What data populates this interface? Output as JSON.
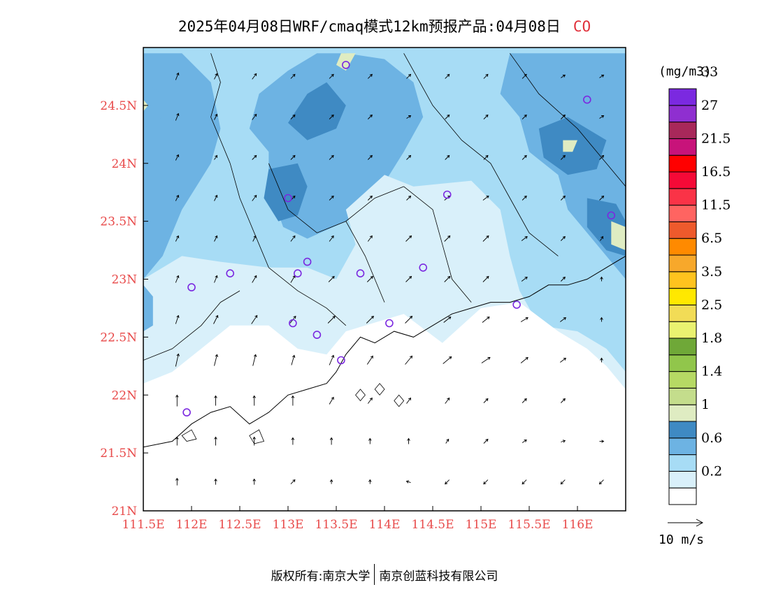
{
  "title": "2025年04月08日WRF/cmaq模式12km预报产品:04月08日",
  "species": "CO",
  "footer": {
    "left": "版权所有:南京大学",
    "right": "南京创蓝科技有限公司"
  },
  "legend": {
    "unit": "(mg/m3)",
    "colors": [
      "#ffffff",
      "#d9f0fa",
      "#a7dcf5",
      "#6db3e3",
      "#3f8ac3",
      "#dfecc2",
      "#c4dd8c",
      "#b6d964",
      "#91c64b",
      "#6fa838",
      "#eaf270",
      "#f2dc56",
      "#ffe800",
      "#ffc31e",
      "#f7a82b",
      "#ff8a00",
      "#ee5a2c",
      "#ff6461",
      "#fa3347",
      "#f50a37",
      "#ff0000",
      "#c8137a",
      "#a8285a",
      "#8f2fd0",
      "#7b29e0"
    ],
    "labels": [
      {
        "text": "0.2",
        "boundary": 2
      },
      {
        "text": "0.6",
        "boundary": 4
      },
      {
        "text": "1",
        "boundary": 6
      },
      {
        "text": "1.4",
        "boundary": 8
      },
      {
        "text": "1.8",
        "boundary": 10
      },
      {
        "text": "2.5",
        "boundary": 12
      },
      {
        "text": "3.5",
        "boundary": 14
      },
      {
        "text": "6.5",
        "boundary": 16
      },
      {
        "text": "11.5",
        "boundary": 18
      },
      {
        "text": "16.5",
        "boundary": 20
      },
      {
        "text": "21.5",
        "boundary": 22
      },
      {
        "text": "27",
        "boundary": 24
      },
      {
        "text": "33",
        "boundary": 26
      }
    ]
  },
  "wind_scale": {
    "label": "10 m/s"
  },
  "axes": {
    "lon_ticks": [
      "111.5E",
      "112E",
      "112.5E",
      "113E",
      "113.5E",
      "114E",
      "114.5E",
      "115E",
      "115.5E",
      "116E"
    ],
    "lat_ticks": [
      "21N",
      "21.5N",
      "22N",
      "22.5N",
      "23N",
      "23.5N",
      "24N",
      "24.5N"
    ],
    "lon_range": [
      111.5,
      116.5
    ],
    "lat_range": [
      21.0,
      25.0
    ],
    "tick_color": "#e84a4a"
  },
  "stations": [
    {
      "lon": 113.6,
      "lat": 24.85
    },
    {
      "lon": 116.1,
      "lat": 24.55
    },
    {
      "lon": 113.0,
      "lat": 23.7
    },
    {
      "lon": 114.65,
      "lat": 23.73
    },
    {
      "lon": 116.35,
      "lat": 23.55
    },
    {
      "lon": 113.2,
      "lat": 23.15
    },
    {
      "lon": 112.4,
      "lat": 23.05
    },
    {
      "lon": 113.1,
      "lat": 23.05
    },
    {
      "lon": 113.75,
      "lat": 23.05
    },
    {
      "lon": 114.4,
      "lat": 23.1
    },
    {
      "lon": 112.0,
      "lat": 22.93
    },
    {
      "lon": 115.37,
      "lat": 22.78
    },
    {
      "lon": 113.05,
      "lat": 22.62
    },
    {
      "lon": 113.3,
      "lat": 22.52
    },
    {
      "lon": 114.05,
      "lat": 22.62
    },
    {
      "lon": 113.55,
      "lat": 22.3
    },
    {
      "lon": 111.95,
      "lat": 21.85
    }
  ],
  "field": {
    "region_1": [
      [
        113.6,
        24.95
      ],
      [
        114.0,
        24.9
      ],
      [
        114.3,
        24.7
      ],
      [
        114.4,
        24.4
      ],
      [
        114.2,
        24.1
      ],
      [
        113.9,
        23.7
      ],
      [
        113.6,
        23.5
      ],
      [
        113.2,
        23.35
      ],
      [
        112.95,
        23.45
      ],
      [
        112.8,
        23.8
      ],
      [
        112.8,
        24.1
      ],
      [
        112.6,
        24.3
      ],
      [
        112.7,
        24.6
      ],
      [
        113.0,
        24.8
      ],
      [
        113.3,
        24.95
      ]
    ],
    "region_2": [
      [
        115.3,
        24.95
      ],
      [
        116.5,
        24.95
      ],
      [
        116.5,
        23.0
      ],
      [
        116.2,
        23.3
      ],
      [
        115.9,
        23.6
      ],
      [
        115.8,
        23.9
      ],
      [
        115.5,
        24.1
      ],
      [
        115.4,
        24.4
      ],
      [
        115.2,
        24.6
      ]
    ],
    "region_3": [
      [
        111.5,
        24.95
      ],
      [
        111.9,
        24.95
      ],
      [
        112.2,
        24.7
      ],
      [
        112.3,
        24.3
      ],
      [
        112.2,
        24.0
      ],
      [
        111.9,
        23.6
      ],
      [
        111.7,
        23.2
      ],
      [
        111.5,
        23.0
      ]
    ],
    "region_4": [
      [
        114.0,
        23.9
      ],
      [
        114.3,
        23.8
      ],
      [
        114.9,
        23.85
      ],
      [
        115.2,
        23.6
      ],
      [
        115.3,
        23.2
      ],
      [
        115.4,
        22.9
      ],
      [
        115.6,
        22.6
      ],
      [
        116.0,
        22.55
      ],
      [
        116.3,
        22.4
      ],
      [
        116.5,
        22.2
      ],
      [
        116.5,
        21.0
      ],
      [
        111.5,
        21.0
      ],
      [
        111.5,
        23.0
      ],
      [
        111.9,
        23.2
      ],
      [
        112.3,
        23.15
      ],
      [
        112.8,
        23.1
      ],
      [
        113.2,
        23.1
      ],
      [
        113.5,
        23.0
      ],
      [
        113.7,
        23.3
      ],
      [
        113.6,
        23.6
      ]
    ],
    "region_5": [
      [
        111.5,
        22.1
      ],
      [
        111.8,
        22.2
      ],
      [
        112.1,
        22.4
      ],
      [
        112.4,
        22.6
      ],
      [
        112.8,
        22.6
      ],
      [
        113.1,
        22.4
      ],
      [
        113.4,
        22.35
      ],
      [
        113.6,
        22.55
      ],
      [
        113.8,
        22.6
      ],
      [
        114.2,
        22.7
      ],
      [
        114.6,
        22.45
      ],
      [
        115.0,
        22.75
      ],
      [
        115.4,
        22.8
      ],
      [
        115.8,
        22.55
      ],
      [
        116.1,
        22.4
      ],
      [
        116.3,
        22.25
      ],
      [
        116.5,
        22.05
      ],
      [
        116.5,
        21.0
      ],
      [
        111.5,
        21.0
      ]
    ],
    "region_6": [
      [
        113.2,
        24.6
      ],
      [
        113.4,
        24.7
      ],
      [
        113.6,
        24.5
      ],
      [
        113.5,
        24.3
      ],
      [
        113.2,
        24.2
      ],
      [
        113.0,
        24.35
      ]
    ],
    "region_7": [
      [
        112.8,
        23.95
      ],
      [
        113.1,
        24.0
      ],
      [
        113.2,
        23.8
      ],
      [
        113.1,
        23.55
      ],
      [
        112.9,
        23.5
      ],
      [
        112.75,
        23.7
      ]
    ],
    "region_8": [
      [
        115.6,
        24.3
      ],
      [
        115.9,
        24.4
      ],
      [
        116.3,
        24.2
      ],
      [
        116.2,
        23.95
      ],
      [
        115.9,
        23.9
      ],
      [
        115.65,
        24.05
      ]
    ],
    "region_9": [
      [
        116.1,
        23.7
      ],
      [
        116.4,
        23.65
      ],
      [
        116.5,
        23.5
      ],
      [
        116.5,
        23.2
      ],
      [
        116.3,
        23.25
      ],
      [
        116.1,
        23.45
      ]
    ],
    "region_10": [
      [
        111.5,
        24.7
      ],
      [
        111.7,
        24.6
      ],
      [
        111.7,
        24.4
      ],
      [
        111.5,
        24.3
      ]
    ],
    "region_11": [
      [
        111.5,
        22.95
      ],
      [
        111.6,
        22.85
      ],
      [
        111.6,
        22.6
      ],
      [
        111.5,
        22.55
      ]
    ],
    "region_12": [
      [
        113.55,
        24.95
      ],
      [
        113.7,
        24.95
      ],
      [
        113.6,
        24.8
      ],
      [
        113.5,
        24.85
      ]
    ],
    "region_13": [
      [
        111.5,
        24.55
      ],
      [
        111.55,
        24.5
      ],
      [
        111.5,
        24.45
      ]
    ],
    "region_14": [
      [
        115.85,
        24.2
      ],
      [
        116.0,
        24.2
      ],
      [
        115.95,
        24.1
      ],
      [
        115.85,
        24.1
      ]
    ],
    "region_15": [
      [
        116.35,
        23.5
      ],
      [
        116.5,
        23.45
      ],
      [
        116.5,
        23.25
      ],
      [
        116.35,
        23.3
      ]
    ]
  },
  "coastline": [
    [
      [
        111.5,
        21.55
      ],
      [
        111.8,
        21.6
      ],
      [
        112.0,
        21.75
      ],
      [
        112.2,
        21.85
      ],
      [
        112.4,
        21.9
      ],
      [
        112.6,
        21.75
      ],
      [
        112.8,
        21.85
      ],
      [
        113.0,
        22.0
      ],
      [
        113.2,
        22.05
      ],
      [
        113.4,
        22.1
      ],
      [
        113.5,
        22.2
      ],
      [
        113.6,
        22.35
      ],
      [
        113.75,
        22.5
      ],
      [
        113.9,
        22.45
      ],
      [
        114.1,
        22.55
      ],
      [
        114.3,
        22.5
      ],
      [
        114.5,
        22.6
      ],
      [
        114.7,
        22.7
      ],
      [
        114.9,
        22.75
      ],
      [
        115.1,
        22.8
      ],
      [
        115.3,
        22.8
      ],
      [
        115.5,
        22.85
      ],
      [
        115.7,
        22.95
      ],
      [
        115.9,
        22.95
      ],
      [
        116.1,
        23.0
      ],
      [
        116.3,
        23.1
      ],
      [
        116.5,
        23.2
      ]
    ]
  ],
  "borders": [
    [
      [
        112.2,
        24.95
      ],
      [
        112.3,
        24.7
      ],
      [
        112.2,
        24.4
      ],
      [
        112.3,
        24.2
      ],
      [
        112.4,
        24.0
      ]
    ],
    [
      [
        112.4,
        24.0
      ],
      [
        112.5,
        23.7
      ],
      [
        112.6,
        23.5
      ],
      [
        112.7,
        23.3
      ],
      [
        112.8,
        23.1
      ]
    ],
    [
      [
        112.8,
        24.0
      ],
      [
        113.0,
        23.6
      ],
      [
        113.3,
        23.4
      ],
      [
        113.6,
        23.5
      ],
      [
        113.9,
        23.7
      ],
      [
        114.2,
        23.8
      ]
    ],
    [
      [
        113.6,
        23.5
      ],
      [
        113.8,
        23.2
      ],
      [
        113.9,
        23.0
      ],
      [
        114.0,
        22.8
      ]
    ],
    [
      [
        114.2,
        23.8
      ],
      [
        114.5,
        23.6
      ],
      [
        114.6,
        23.3
      ],
      [
        114.7,
        23.0
      ],
      [
        114.9,
        22.8
      ]
    ],
    [
      [
        114.2,
        24.95
      ],
      [
        114.5,
        24.5
      ],
      [
        114.8,
        24.2
      ],
      [
        115.1,
        24.0
      ],
      [
        115.3,
        23.7
      ],
      [
        115.5,
        23.4
      ],
      [
        115.8,
        23.2
      ]
    ],
    [
      [
        115.3,
        24.95
      ],
      [
        115.6,
        24.6
      ],
      [
        116.0,
        24.3
      ],
      [
        116.3,
        24.0
      ],
      [
        116.5,
        23.8
      ]
    ],
    [
      [
        112.8,
        23.1
      ],
      [
        113.1,
        22.9
      ],
      [
        113.4,
        22.75
      ],
      [
        113.6,
        22.6
      ]
    ],
    [
      [
        111.5,
        22.3
      ],
      [
        111.8,
        22.4
      ],
      [
        112.1,
        22.6
      ],
      [
        112.3,
        22.8
      ],
      [
        112.5,
        22.9
      ]
    ]
  ],
  "islands": [
    [
      [
        113.9,
        22.05
      ],
      [
        113.95,
        22.1
      ],
      [
        114.0,
        22.05
      ],
      [
        113.95,
        22.0
      ]
    ],
    [
      [
        113.7,
        22.0
      ],
      [
        113.75,
        22.05
      ],
      [
        113.8,
        22.0
      ],
      [
        113.75,
        21.95
      ]
    ],
    [
      [
        114.1,
        21.95
      ],
      [
        114.15,
        22.0
      ],
      [
        114.2,
        21.95
      ],
      [
        114.15,
        21.9
      ]
    ],
    [
      [
        112.6,
        21.65
      ],
      [
        112.7,
        21.7
      ],
      [
        112.75,
        21.6
      ],
      [
        112.65,
        21.58
      ]
    ],
    [
      [
        111.9,
        21.65
      ],
      [
        112.0,
        21.7
      ],
      [
        112.05,
        21.62
      ],
      [
        111.95,
        21.6
      ]
    ]
  ],
  "wind": {
    "lons": [
      111.85,
      112.25,
      112.65,
      113.05,
      113.45,
      113.85,
      114.25,
      114.65,
      115.05,
      115.45,
      115.85,
      116.25
    ],
    "lats": [
      21.25,
      21.6,
      21.95,
      22.3,
      22.65,
      23.0,
      23.35,
      23.7,
      24.05,
      24.4,
      24.75
    ],
    "rows": [
      [
        [
          0,
          5
        ],
        [
          0,
          4
        ],
        [
          0,
          4
        ],
        [
          3,
          3
        ],
        [
          0,
          3
        ],
        [
          0,
          3
        ],
        [
          -3,
          1
        ],
        [
          -3,
          -3
        ],
        [
          -3,
          -3
        ],
        [
          -3,
          -3
        ],
        [
          -3,
          -3
        ],
        [
          -3,
          -3
        ]
      ],
      [
        [
          0,
          6
        ],
        [
          0,
          6
        ],
        [
          0,
          6
        ],
        [
          0,
          5
        ],
        [
          0,
          5
        ],
        [
          0,
          4
        ],
        [
          0,
          4
        ],
        [
          2,
          3
        ],
        [
          3,
          3
        ],
        [
          3,
          2
        ],
        [
          3,
          1
        ],
        [
          3,
          0
        ]
      ],
      [
        [
          0,
          8
        ],
        [
          0,
          7
        ],
        [
          0,
          7
        ],
        [
          0,
          7
        ],
        [
          3,
          5
        ],
        [
          3,
          4
        ],
        [
          3,
          4
        ],
        [
          3,
          4
        ],
        [
          3,
          3
        ],
        [
          3,
          3
        ],
        [
          3,
          3
        ],
        [
          0,
          0
        ]
      ],
      [
        [
          2,
          9
        ],
        [
          2,
          8
        ],
        [
          2,
          8
        ],
        [
          2,
          7
        ],
        [
          3,
          7
        ],
        [
          4,
          6
        ],
        [
          5,
          6
        ],
        [
          6,
          5
        ],
        [
          6,
          4
        ],
        [
          5,
          4
        ],
        [
          4,
          3
        ],
        [
          0,
          3
        ]
      ],
      [
        [
          2,
          6
        ],
        [
          3,
          6
        ],
        [
          4,
          6
        ],
        [
          4,
          5
        ],
        [
          5,
          5
        ],
        [
          5,
          5
        ],
        [
          5,
          5
        ],
        [
          5,
          4
        ],
        [
          5,
          4
        ],
        [
          5,
          3
        ],
        [
          4,
          3
        ],
        [
          0,
          3
        ]
      ],
      [
        [
          2,
          5
        ],
        [
          2,
          5
        ],
        [
          3,
          5
        ],
        [
          3,
          5
        ],
        [
          4,
          4
        ],
        [
          4,
          4
        ],
        [
          4,
          4
        ],
        [
          4,
          4
        ],
        [
          4,
          4
        ],
        [
          4,
          3
        ],
        [
          3,
          3
        ],
        [
          0,
          3
        ]
      ],
      [
        [
          2,
          4
        ],
        [
          2,
          4
        ],
        [
          2,
          4
        ],
        [
          3,
          4
        ],
        [
          3,
          4
        ],
        [
          3,
          4
        ],
        [
          4,
          4
        ],
        [
          4,
          4
        ],
        [
          4,
          4
        ],
        [
          4,
          3
        ],
        [
          3,
          3
        ],
        [
          2,
          3
        ]
      ],
      [
        [
          2,
          4
        ],
        [
          2,
          4
        ],
        [
          3,
          4
        ],
        [
          3,
          3
        ],
        [
          3,
          3
        ],
        [
          3,
          3
        ],
        [
          3,
          3
        ],
        [
          4,
          3
        ],
        [
          4,
          3
        ],
        [
          3,
          3
        ],
        [
          3,
          3
        ],
        [
          3,
          3
        ]
      ],
      [
        [
          2,
          4
        ],
        [
          2,
          3
        ],
        [
          3,
          3
        ],
        [
          3,
          3
        ],
        [
          3,
          3
        ],
        [
          3,
          3
        ],
        [
          3,
          3
        ],
        [
          3,
          3
        ],
        [
          3,
          3
        ],
        [
          3,
          3
        ],
        [
          3,
          3
        ],
        [
          3,
          3
        ]
      ],
      [
        [
          2,
          5
        ],
        [
          2,
          4
        ],
        [
          3,
          4
        ],
        [
          3,
          3
        ],
        [
          3,
          3
        ],
        [
          3,
          3
        ],
        [
          3,
          2
        ],
        [
          3,
          3
        ],
        [
          3,
          3
        ],
        [
          3,
          3
        ],
        [
          3,
          3
        ],
        [
          3,
          2
        ]
      ],
      [
        [
          2,
          5
        ],
        [
          2,
          4
        ],
        [
          3,
          4
        ],
        [
          3,
          3
        ],
        [
          3,
          3
        ],
        [
          3,
          3
        ],
        [
          3,
          3
        ],
        [
          3,
          3
        ],
        [
          3,
          3
        ],
        [
          3,
          3
        ],
        [
          3,
          2
        ],
        [
          3,
          2
        ]
      ]
    ]
  }
}
